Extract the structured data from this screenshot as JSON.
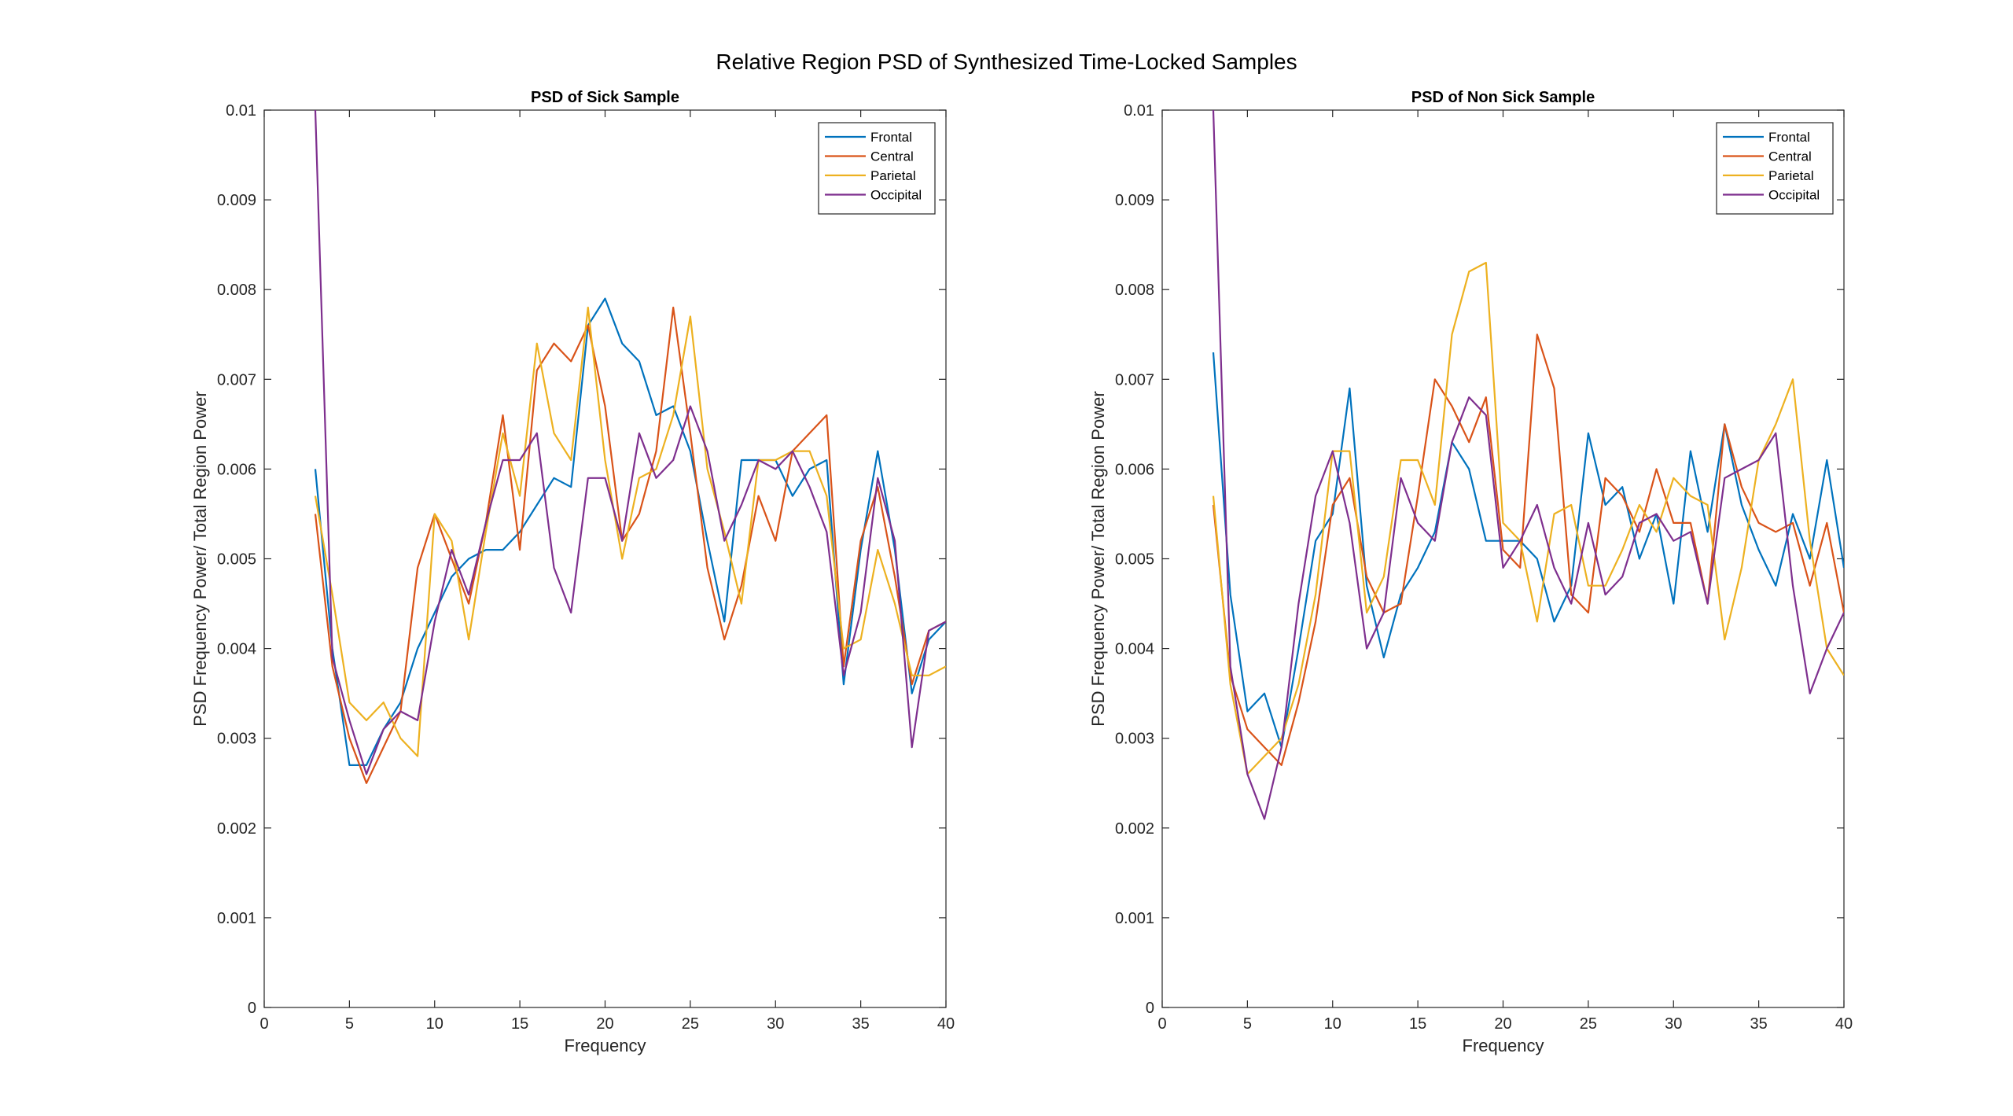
{
  "figure_title": "Relative Region PSD of Synthesized Time-Locked Samples",
  "colors": {
    "Frontal": "#0072BD",
    "Central": "#D95319",
    "Parietal": "#EDB120",
    "Occipital": "#7E2F8E"
  },
  "chart_data": [
    {
      "type": "line",
      "title": "PSD of Sick Sample",
      "xlabel": "Frequency",
      "ylabel": "PSD Frequency Power/ Total Region Power",
      "xlim": [
        0,
        40
      ],
      "ylim": [
        0,
        0.01
      ],
      "xticks": [
        "0",
        "5",
        "10",
        "15",
        "20",
        "25",
        "30",
        "35",
        "40"
      ],
      "yticks": [
        "0",
        "0.001",
        "0.002",
        "0.003",
        "0.004",
        "0.005",
        "0.006",
        "0.007",
        "0.008",
        "0.009",
        "0.01"
      ],
      "grid": false,
      "legend_position": "top-right",
      "x": [
        3,
        4,
        5,
        6,
        7,
        8,
        9,
        10,
        11,
        12,
        13,
        14,
        15,
        16,
        17,
        18,
        19,
        20,
        21,
        22,
        23,
        24,
        25,
        26,
        27,
        28,
        29,
        30,
        31,
        32,
        33,
        34,
        35,
        36,
        37,
        38,
        39,
        40
      ],
      "series": [
        {
          "name": "Frontal",
          "values": [
            0.006,
            0.004,
            0.0027,
            0.0027,
            0.0031,
            0.0034,
            0.004,
            0.0044,
            0.0048,
            0.005,
            0.0051,
            0.0051,
            0.0053,
            0.0056,
            0.0059,
            0.0058,
            0.0076,
            0.0079,
            0.0074,
            0.0072,
            0.0066,
            0.0067,
            0.0062,
            0.0052,
            0.0043,
            0.0061,
            0.0061,
            0.0061,
            0.0057,
            0.006,
            0.0061,
            0.0036,
            0.0051,
            0.0062,
            0.0051,
            0.0035,
            0.0041,
            0.0043
          ]
        },
        {
          "name": "Central",
          "values": [
            0.0055,
            0.0038,
            0.003,
            0.0025,
            0.0029,
            0.0033,
            0.0049,
            0.0055,
            0.005,
            0.0045,
            0.0054,
            0.0066,
            0.0051,
            0.0071,
            0.0074,
            0.0072,
            0.0076,
            0.0067,
            0.0052,
            0.0055,
            0.0062,
            0.0078,
            0.0064,
            0.0049,
            0.0041,
            0.0047,
            0.0057,
            0.0052,
            0.0062,
            0.0064,
            0.0066,
            0.0038,
            0.0052,
            0.0058,
            0.0048,
            0.0036,
            0.0042,
            0.0043
          ]
        },
        {
          "name": "Parietal",
          "values": [
            0.0057,
            0.0046,
            0.0034,
            0.0032,
            0.0034,
            0.003,
            0.0028,
            0.0055,
            0.0052,
            0.0041,
            0.0053,
            0.0064,
            0.0057,
            0.0074,
            0.0064,
            0.0061,
            0.0078,
            0.0061,
            0.005,
            0.0059,
            0.006,
            0.0066,
            0.0077,
            0.006,
            0.0053,
            0.0045,
            0.0061,
            0.0061,
            0.0062,
            0.0062,
            0.0057,
            0.004,
            0.0041,
            0.0051,
            0.0045,
            0.0037,
            0.0037,
            0.0038
          ]
        },
        {
          "name": "Occipital",
          "values": [
            0.01,
            0.0039,
            0.0032,
            0.0026,
            0.0031,
            0.0033,
            0.0032,
            0.0043,
            0.0051,
            0.0046,
            0.0054,
            0.0061,
            0.0061,
            0.0064,
            0.0049,
            0.0044,
            0.0059,
            0.0059,
            0.0052,
            0.0064,
            0.0059,
            0.0061,
            0.0067,
            0.0062,
            0.0052,
            0.0056,
            0.0061,
            0.006,
            0.0062,
            0.0058,
            0.0053,
            0.0037,
            0.0044,
            0.0059,
            0.0052,
            0.0029,
            0.0042,
            0.0043
          ]
        }
      ]
    },
    {
      "type": "line",
      "title": "PSD of Non Sick Sample",
      "xlabel": "Frequency",
      "ylabel": "PSD Frequency Power/ Total Region Power",
      "xlim": [
        0,
        40
      ],
      "ylim": [
        0,
        0.01
      ],
      "xticks": [
        "0",
        "5",
        "10",
        "15",
        "20",
        "25",
        "30",
        "35",
        "40"
      ],
      "yticks": [
        "0",
        "0.001",
        "0.002",
        "0.003",
        "0.004",
        "0.005",
        "0.006",
        "0.007",
        "0.008",
        "0.009",
        "0.01"
      ],
      "grid": false,
      "legend_position": "top-right",
      "x": [
        3,
        4,
        5,
        6,
        7,
        8,
        9,
        10,
        11,
        12,
        13,
        14,
        15,
        16,
        17,
        18,
        19,
        20,
        21,
        22,
        23,
        24,
        25,
        26,
        27,
        28,
        29,
        30,
        31,
        32,
        33,
        34,
        35,
        36,
        37,
        38,
        39,
        40
      ],
      "series": [
        {
          "name": "Frontal",
          "values": [
            0.0073,
            0.0046,
            0.0033,
            0.0035,
            0.0029,
            0.004,
            0.0052,
            0.0055,
            0.0069,
            0.0047,
            0.0039,
            0.0046,
            0.0049,
            0.0053,
            0.0063,
            0.006,
            0.0052,
            0.0052,
            0.0052,
            0.005,
            0.0043,
            0.0047,
            0.0064,
            0.0056,
            0.0058,
            0.005,
            0.0055,
            0.0045,
            0.0062,
            0.0053,
            0.0065,
            0.0056,
            0.0051,
            0.0047,
            0.0055,
            0.005,
            0.0061,
            0.0049
          ]
        },
        {
          "name": "Central",
          "values": [
            0.0056,
            0.0037,
            0.0031,
            0.0029,
            0.0027,
            0.0034,
            0.0043,
            0.0056,
            0.0059,
            0.0048,
            0.0044,
            0.0045,
            0.0057,
            0.007,
            0.0067,
            0.0063,
            0.0068,
            0.0051,
            0.0049,
            0.0075,
            0.0069,
            0.0046,
            0.0044,
            0.0059,
            0.0057,
            0.0053,
            0.006,
            0.0054,
            0.0054,
            0.0045,
            0.0065,
            0.0058,
            0.0054,
            0.0053,
            0.0054,
            0.0047,
            0.0054,
            0.0044
          ]
        },
        {
          "name": "Parietal",
          "values": [
            0.0057,
            0.0036,
            0.0026,
            0.0028,
            0.003,
            0.0036,
            0.0046,
            0.0062,
            0.0062,
            0.0044,
            0.0048,
            0.0061,
            0.0061,
            0.0056,
            0.0075,
            0.0082,
            0.0083,
            0.0054,
            0.0052,
            0.0043,
            0.0055,
            0.0056,
            0.0047,
            0.0047,
            0.0051,
            0.0056,
            0.0053,
            0.0059,
            0.0057,
            0.0056,
            0.0041,
            0.0049,
            0.0061,
            0.0065,
            0.007,
            0.0052,
            0.004,
            0.0037
          ]
        },
        {
          "name": "Occipital",
          "values": [
            0.01,
            0.0038,
            0.0026,
            0.0021,
            0.0029,
            0.0045,
            0.0057,
            0.0062,
            0.0054,
            0.004,
            0.0044,
            0.0059,
            0.0054,
            0.0052,
            0.0063,
            0.0068,
            0.0066,
            0.0049,
            0.0052,
            0.0056,
            0.0049,
            0.0045,
            0.0054,
            0.0046,
            0.0048,
            0.0054,
            0.0055,
            0.0052,
            0.0053,
            0.0045,
            0.0059,
            0.006,
            0.0061,
            0.0064,
            0.0047,
            0.0035,
            0.004,
            0.0044
          ]
        }
      ]
    }
  ]
}
